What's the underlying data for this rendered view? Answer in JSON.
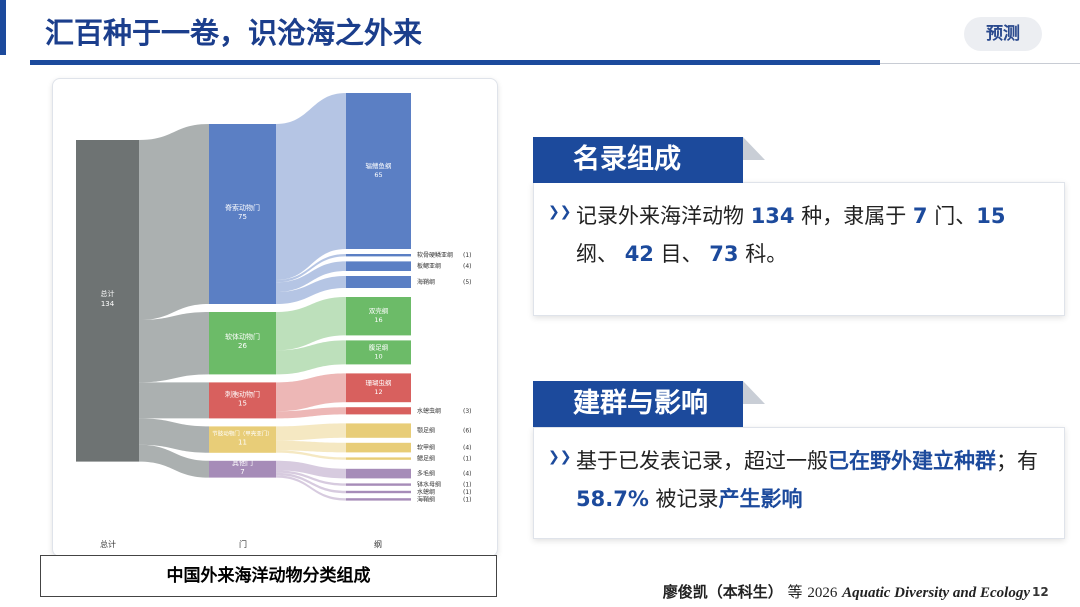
{
  "header": {
    "title": "汇百种于一卷，识沧海之外来",
    "tag": "预测"
  },
  "figure": {
    "caption": "中国外来海洋动物分类组成",
    "columns": [
      "总计",
      "门",
      "纲"
    ],
    "total": {
      "name": "总计",
      "value": 134,
      "color": "#6e7373"
    },
    "phyla": [
      {
        "name": "脊索动物门",
        "value": 75,
        "color": "#5b7fc4",
        "classes": [
          {
            "name": "辐鳍鱼纲",
            "value": 65
          },
          {
            "name": "软骨硬鳞亚纲",
            "value": 1,
            "value_label": "(1)"
          },
          {
            "name": "板鳃亚纲",
            "value": 4,
            "value_label": "(4)"
          },
          {
            "name": "海鞘纲",
            "value": 5,
            "value_label": "(5)"
          }
        ]
      },
      {
        "name": "软体动物门",
        "value": 26,
        "color": "#6cbb68",
        "classes": [
          {
            "name": "双壳纲",
            "value": 16
          },
          {
            "name": "腹足纲",
            "value": 10
          }
        ]
      },
      {
        "name": "刺胞动物门",
        "value": 15,
        "color": "#d8605e",
        "classes": [
          {
            "name": "珊瑚虫纲",
            "value": 12
          },
          {
            "name": "水螅虫纲",
            "value": 3,
            "value_label": "(3)"
          }
        ]
      },
      {
        "name": "节肢动物门（甲壳亚门）",
        "value": 11,
        "color": "#e8cd78",
        "classes": [
          {
            "name": "颚足纲",
            "value": 6,
            "value_label": "(6)"
          },
          {
            "name": "软甲纲",
            "value": 4,
            "value_label": "(4)"
          },
          {
            "name": "鳃足纲",
            "value": 1,
            "value_label": "(1)"
          }
        ]
      },
      {
        "name": "其他门",
        "value": 7,
        "color": "#a68cb8",
        "classes": [
          {
            "name": "多毛纲",
            "value": 4,
            "value_label": "(4)"
          },
          {
            "name": "钵水母纲",
            "value": 1,
            "value_label": "(1)"
          },
          {
            "name": "水螅纲",
            "value": 1,
            "value_label": "(1)"
          },
          {
            "name": "海鞘纲",
            "value": 1,
            "value_label": "(1)"
          }
        ]
      }
    ]
  },
  "panels": [
    {
      "title": "名录组成",
      "segments": [
        {
          "text": "记录外来海洋动物 ",
          "em": false
        },
        {
          "text": "134",
          "em": true
        },
        {
          "text": " 种，隶属于 ",
          "em": false
        },
        {
          "text": "7",
          "em": true
        },
        {
          "text": " 门、",
          "em": false
        },
        {
          "text": "15",
          "em": true
        },
        {
          "text": " 纲、 ",
          "em": false
        },
        {
          "text": "42",
          "em": true
        },
        {
          "text": " 目、 ",
          "em": false
        },
        {
          "text": "73",
          "em": true
        },
        {
          "text": " 科。",
          "em": false
        }
      ]
    },
    {
      "title": "建群与影响",
      "segments": [
        {
          "text": "基于已发表记录，超过一般",
          "em": false
        },
        {
          "text": "已在野外建立种群",
          "em": true
        },
        {
          "text": "；有 ",
          "em": false
        },
        {
          "text": "58.7%",
          "em": true
        },
        {
          "text": " 被记录",
          "em": false
        },
        {
          "text": "产生影响",
          "em": true
        }
      ]
    }
  ],
  "footer": {
    "author": "廖俊凯（本科生）",
    "et_al": "等",
    "year": "2026",
    "journal": "Aquatic Diversity and Ecology",
    "page": "12"
  }
}
